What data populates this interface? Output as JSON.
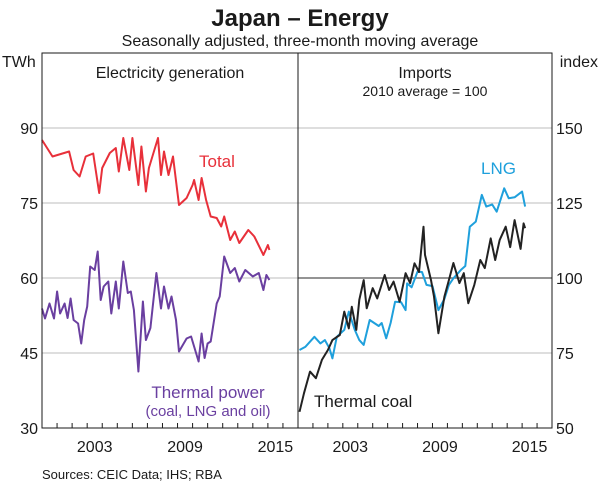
{
  "chart_data": {
    "type": "line",
    "title": "Japan – Energy",
    "subtitle": "Seasonally adjusted, three-month moving average",
    "source": "Sources:  CEIC Data; IHS; RBA",
    "x_tick_labels": [
      "2003",
      "2009",
      "2015"
    ],
    "x_ticks": [
      2003,
      2009,
      2015
    ],
    "xlim": [
      2000,
      2017
    ],
    "panels": [
      {
        "title": "Electricity generation",
        "subtitle": "",
        "ylabel": "TWh",
        "ylim": [
          30,
          90
        ],
        "y_ticks": [
          30,
          45,
          60,
          75,
          90
        ],
        "y_tick_labels": [
          "30",
          "45",
          "60",
          "75",
          "90"
        ],
        "series": [
          {
            "name": "Total",
            "label": "Total",
            "color": "#e8303a",
            "points": [
              [
                2000.0,
                87.6
              ],
              [
                2000.7,
                84.3
              ],
              [
                2001.8,
                85.3
              ],
              [
                2002.1,
                81.6
              ],
              [
                2002.5,
                80.3
              ],
              [
                2002.9,
                84.3
              ],
              [
                2003.4,
                84.9
              ],
              [
                2003.8,
                77
              ],
              [
                2004.0,
                82
              ],
              [
                2004.5,
                85
              ],
              [
                2004.9,
                86
              ],
              [
                2005.1,
                81.3
              ],
              [
                2005.4,
                88
              ],
              [
                2005.8,
                81.6
              ],
              [
                2006.0,
                88
              ],
              [
                2006.4,
                78.6
              ],
              [
                2006.6,
                86.3
              ],
              [
                2006.9,
                77.3
              ],
              [
                2007.1,
                82
              ],
              [
                2007.7,
                88
              ],
              [
                2007.9,
                80.6
              ],
              [
                2008.1,
                85.3
              ],
              [
                2008.4,
                80.6
              ],
              [
                2008.7,
                84.3
              ],
              [
                2009.1,
                74.6
              ],
              [
                2009.6,
                76
              ],
              [
                2010.0,
                78.6
              ],
              [
                2010.1,
                79.6
              ],
              [
                2010.4,
                75.6
              ],
              [
                2010.6,
                80
              ],
              [
                2010.9,
                75.6
              ],
              [
                2011.2,
                72.3
              ],
              [
                2011.6,
                72
              ],
              [
                2011.9,
                70.3
              ],
              [
                2012.1,
                72.3
              ],
              [
                2012.5,
                67.6
              ],
              [
                2012.8,
                69.3
              ],
              [
                2013.1,
                67
              ],
              [
                2013.7,
                69.6
              ],
              [
                2014.1,
                68.3
              ],
              [
                2014.7,
                64.6
              ],
              [
                2015.0,
                66.6
              ],
              [
                2015.1,
                65.6
              ]
            ]
          },
          {
            "name": "Thermal power",
            "label": "Thermal power",
            "label2": "(coal, LNG and oil)",
            "color": "#6a3fa0",
            "points": [
              [
                2000.0,
                53.9
              ],
              [
                2000.2,
                51.9
              ],
              [
                2000.5,
                54.9
              ],
              [
                2000.8,
                51.9
              ],
              [
                2001.0,
                57.3
              ],
              [
                2001.2,
                52.9
              ],
              [
                2001.5,
                54.9
              ],
              [
                2001.7,
                52
              ],
              [
                2001.9,
                55.9
              ],
              [
                2002.1,
                51.6
              ],
              [
                2002.4,
                50.9
              ],
              [
                2002.6,
                46.9
              ],
              [
                2002.8,
                51.6
              ],
              [
                2003.0,
                54.3
              ],
              [
                2003.2,
                62.3
              ],
              [
                2003.5,
                61.6
              ],
              [
                2003.7,
                65.3
              ],
              [
                2003.9,
                55.6
              ],
              [
                2004.1,
                58.3
              ],
              [
                2004.4,
                59.3
              ],
              [
                2004.6,
                52.9
              ],
              [
                2004.9,
                59.3
              ],
              [
                2005.1,
                53.9
              ],
              [
                2005.4,
                63.3
              ],
              [
                2005.7,
                57
              ],
              [
                2005.9,
                57.3
              ],
              [
                2006.1,
                53.6
              ],
              [
                2006.4,
                41.3
              ],
              [
                2006.7,
                55.3
              ],
              [
                2006.9,
                47.6
              ],
              [
                2007.2,
                50
              ],
              [
                2007.6,
                61
              ],
              [
                2007.9,
                53.9
              ],
              [
                2008.1,
                58.3
              ],
              [
                2008.4,
                53.9
              ],
              [
                2008.6,
                56.3
              ],
              [
                2008.9,
                51.6
              ],
              [
                2009.1,
                45.3
              ],
              [
                2009.6,
                47.9
              ],
              [
                2009.9,
                48.3
              ],
              [
                2010.1,
                46.3
              ],
              [
                2010.4,
                43.3
              ],
              [
                2010.6,
                48.9
              ],
              [
                2010.8,
                44
              ],
              [
                2011.0,
                46.9
              ],
              [
                2011.2,
                47.3
              ],
              [
                2011.6,
                54.9
              ],
              [
                2011.8,
                56.3
              ],
              [
                2012.1,
                64.3
              ],
              [
                2012.5,
                61
              ],
              [
                2012.8,
                62
              ],
              [
                2013.1,
                59.3
              ],
              [
                2013.5,
                61.6
              ],
              [
                2014.0,
                60.3
              ],
              [
                2014.4,
                61
              ],
              [
                2014.7,
                57.6
              ],
              [
                2014.9,
                60.6
              ],
              [
                2015.1,
                59.6
              ]
            ]
          }
        ]
      },
      {
        "title": "Imports",
        "subtitle": "2010 average = 100",
        "ylabel": "index",
        "ylim": [
          50,
          150
        ],
        "y_ticks": [
          50,
          75,
          100,
          125,
          150
        ],
        "y_tick_labels": [
          "50",
          "75",
          "100",
          "125",
          "150"
        ],
        "series": [
          {
            "name": "LNG",
            "label": "LNG",
            "color": "#1fa0dc",
            "points": [
              [
                2000.1,
                76
              ],
              [
                2000.5,
                77.1
              ],
              [
                2001.1,
                80.4
              ],
              [
                2001.5,
                78.2
              ],
              [
                2001.8,
                79.3
              ],
              [
                2002.1,
                76.6
              ],
              [
                2002.3,
                73.2
              ],
              [
                2002.6,
                80.4
              ],
              [
                2003.1,
                82.7
              ],
              [
                2003.4,
                88.8
              ],
              [
                2003.8,
                82.7
              ],
              [
                2004.1,
                79.3
              ],
              [
                2004.4,
                77.7
              ],
              [
                2004.8,
                86
              ],
              [
                2005.1,
                85
              ],
              [
                2005.4,
                84
              ],
              [
                2005.6,
                85
              ],
              [
                2005.9,
                79.9
              ],
              [
                2006.2,
                85
              ],
              [
                2006.5,
                92.1
              ],
              [
                2006.9,
                91.9
              ],
              [
                2007.2,
                89.3
              ],
              [
                2007.3,
                98.2
              ],
              [
                2007.6,
                96.9
              ],
              [
                2008.0,
                102.1
              ],
              [
                2008.3,
                102
              ],
              [
                2008.6,
                97.7
              ],
              [
                2009.0,
                97.3
              ],
              [
                2009.4,
                89.3
              ],
              [
                2009.8,
                93
              ],
              [
                2010.1,
                97.7
              ],
              [
                2010.4,
                99.9
              ],
              [
                2010.9,
                102.7
              ],
              [
                2011.2,
                104
              ],
              [
                2011.5,
                117.1
              ],
              [
                2011.9,
                118.8
              ],
              [
                2012.3,
                127.7
              ],
              [
                2012.6,
                123.8
              ],
              [
                2013.0,
                124.5
              ],
              [
                2013.3,
                122.1
              ],
              [
                2013.8,
                129.9
              ],
              [
                2014.1,
                126.6
              ],
              [
                2014.5,
                126.9
              ],
              [
                2015.0,
                128.8
              ],
              [
                2015.2,
                123.8
              ]
            ]
          },
          {
            "name": "Thermal coal",
            "label": "Thermal coal",
            "color": "#222222",
            "points": [
              [
                2000.1,
                55.4
              ],
              [
                2000.4,
                61.6
              ],
              [
                2000.8,
                68.8
              ],
              [
                2001.2,
                66.6
              ],
              [
                2001.6,
                72.7
              ],
              [
                2002.0,
                76
              ],
              [
                2002.3,
                79.3
              ],
              [
                2002.8,
                81
              ],
              [
                2003.1,
                88.8
              ],
              [
                2003.4,
                83.2
              ],
              [
                2003.6,
                90.4
              ],
              [
                2003.9,
                82.7
              ],
              [
                2004.1,
                92.7
              ],
              [
                2004.4,
                99.3
              ],
              [
                2004.6,
                89.9
              ],
              [
                2005.0,
                96.6
              ],
              [
                2005.3,
                93.2
              ],
              [
                2005.8,
                101
              ],
              [
                2006.1,
                96
              ],
              [
                2006.4,
                98.8
              ],
              [
                2006.8,
                92.1
              ],
              [
                2007.2,
                101.6
              ],
              [
                2007.5,
                98.3
              ],
              [
                2007.8,
                104.9
              ],
              [
                2008.1,
                102
              ],
              [
                2008.4,
                117.1
              ],
              [
                2008.5,
                107.7
              ],
              [
                2008.9,
                99.3
              ],
              [
                2009.1,
                93.8
              ],
              [
                2009.4,
                81.6
              ],
              [
                2009.8,
                93.8
              ],
              [
                2010.1,
                99.3
              ],
              [
                2010.4,
                105
              ],
              [
                2010.8,
                98.3
              ],
              [
                2011.1,
                101.6
              ],
              [
                2011.4,
                91.6
              ],
              [
                2011.8,
                97.7
              ],
              [
                2012.2,
                106
              ],
              [
                2012.5,
                103.3
              ],
              [
                2012.9,
                113.2
              ],
              [
                2013.2,
                106
              ],
              [
                2013.5,
                112.7
              ],
              [
                2013.9,
                117.1
              ],
              [
                2014.2,
                110.3
              ],
              [
                2014.5,
                119.3
              ],
              [
                2014.9,
                109.7
              ],
              [
                2015.1,
                118.2
              ],
              [
                2015.2,
                116.6
              ]
            ]
          }
        ]
      }
    ],
    "grid": true,
    "reference_line": 100
  }
}
